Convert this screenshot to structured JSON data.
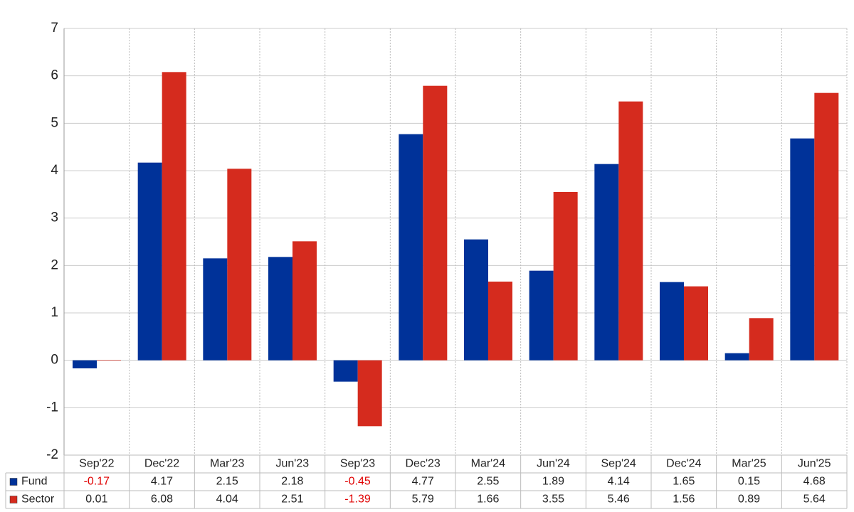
{
  "chart_data": {
    "type": "bar",
    "categories": [
      "Sep'22",
      "Dec'22",
      "Mar'23",
      "Jun'23",
      "Sep'23",
      "Dec'23",
      "Mar'24",
      "Jun'24",
      "Sep'24",
      "Dec'24",
      "Mar'25",
      "Jun'25"
    ],
    "series": [
      {
        "name": "Fund",
        "color": "#003299",
        "values": [
          -0.17,
          4.17,
          2.15,
          2.18,
          -0.45,
          4.77,
          2.55,
          1.89,
          4.14,
          1.65,
          0.15,
          4.68
        ]
      },
      {
        "name": "Sector",
        "color": "#d52b1e",
        "values": [
          0.01,
          6.08,
          4.04,
          2.51,
          -1.39,
          5.79,
          1.66,
          3.55,
          5.46,
          1.56,
          0.89,
          5.64
        ]
      }
    ],
    "ylim": [
      -2,
      7
    ],
    "yticks": [
      -2,
      -1,
      0,
      1,
      2,
      3,
      4,
      5,
      6,
      7
    ],
    "grid": true
  }
}
